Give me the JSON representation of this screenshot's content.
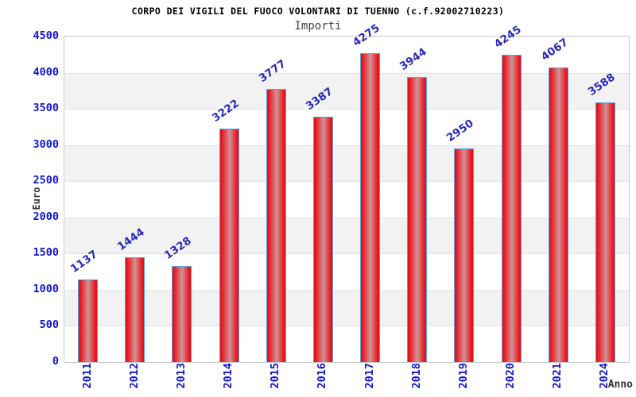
{
  "header": {
    "title": "CORPO DEI VIGILI DEL FUOCO VOLONTARI DI TUENNO (c.f.92002710223)",
    "subtitle": "Importi"
  },
  "chart_data": {
    "type": "bar",
    "title": "CORPO DEI VIGILI DEL FUOCO VOLONTARI DI TUENNO (c.f.92002710223)",
    "subtitle": "Importi",
    "xlabel": "Anno",
    "ylabel": "Euro",
    "categories": [
      "2011",
      "2012",
      "2013",
      "2014",
      "2015",
      "2016",
      "2017",
      "2018",
      "2019",
      "2020",
      "2021",
      "2024"
    ],
    "values": [
      1137,
      1444,
      1328,
      3222,
      3777,
      3387,
      4275,
      3944,
      2950,
      4245,
      4067,
      3588
    ],
    "ylim": [
      0,
      4500
    ],
    "ytick_step": 500,
    "grid": "horizontal-alternating-bands",
    "legend_position": "none",
    "colors": {
      "bar_fill": "#ee1c24",
      "bar_edge_dark": "#d0151b",
      "bar_highlight": "#cc9598",
      "bar_border": "#58a2e0",
      "value_label": "#2a2ab8",
      "axis_tick_label": "#1414cc",
      "band": "#f2f2f2",
      "plot_border": "#c9c9c9",
      "title": "#000000",
      "subtitle": "#444444",
      "axis_title": "#333333"
    }
  }
}
